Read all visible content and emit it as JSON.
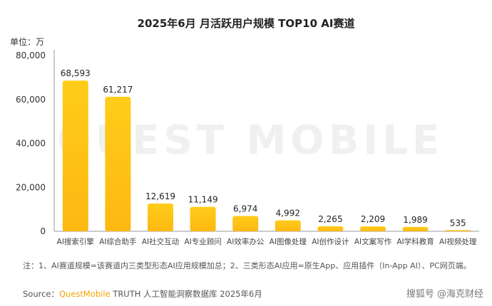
{
  "chart_data": {
    "type": "bar",
    "title": "2025年6月 月活跃用户规模 TOP10 AI赛道",
    "ylabel": "单位：万",
    "ylim": [
      0,
      80000
    ],
    "yticks": [
      "0",
      "20,000",
      "40,000",
      "60,000",
      "80,000"
    ],
    "categories": [
      "AI搜索引擎",
      "AI综合助手",
      "AI社交互动",
      "AI专业顾问",
      "AI效率办公",
      "AI图像处理",
      "AI创作设计",
      "AI文案写作",
      "AI学科教育",
      "AI视频处理"
    ],
    "values": [
      68593,
      61217,
      12619,
      11149,
      6974,
      4992,
      2265,
      2209,
      1989,
      535
    ],
    "labels": [
      "68,593",
      "61,217",
      "12,619",
      "11,149",
      "6,974",
      "4,992",
      "2,265",
      "2,209",
      "1,989",
      "535"
    ],
    "bar_color": "#fdbf10"
  },
  "note": "注：1、AI赛道规模=该赛道内三类型形态AI应用规模加总；2、三类形态AI应用=原生App、应用插件（In-App AI）、PC网页端。",
  "source": {
    "prefix": "Source：",
    "brand": "QuestMobile",
    "rest": " TRUTH 人工智能洞察数据库 2025年6月"
  },
  "watermark_text": "QUEST MOBILE",
  "credit": "搜狐号 @海克财经"
}
